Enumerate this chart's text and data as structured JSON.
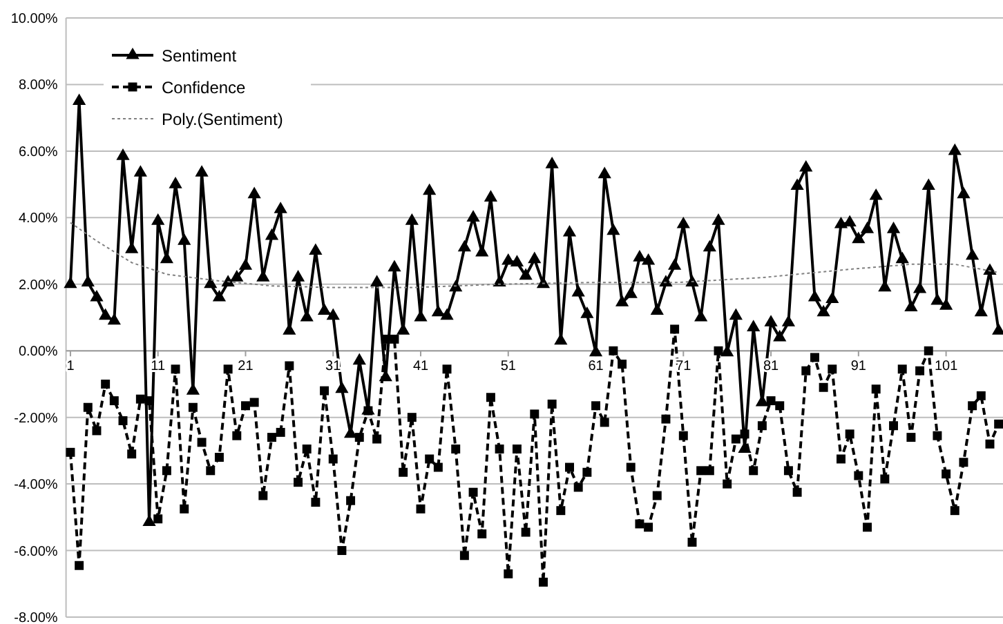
{
  "chart_data": {
    "type": "line",
    "x": [
      1,
      2,
      3,
      4,
      5,
      6,
      7,
      8,
      9,
      10,
      11,
      12,
      13,
      14,
      15,
      16,
      17,
      18,
      19,
      20,
      21,
      22,
      23,
      24,
      25,
      26,
      27,
      28,
      29,
      30,
      31,
      32,
      33,
      34,
      35,
      36,
      37,
      38,
      39,
      40,
      41,
      42,
      43,
      44,
      45,
      46,
      47,
      48,
      49,
      50,
      51,
      52,
      53,
      54,
      55,
      56,
      57,
      58,
      59,
      60,
      61,
      62,
      63,
      64,
      65,
      66,
      67,
      68,
      69,
      70,
      71,
      72,
      73,
      74,
      75,
      76,
      77,
      78,
      79,
      80,
      81,
      82,
      83,
      84,
      85,
      86,
      87,
      88,
      89,
      90,
      91,
      92,
      93,
      94,
      95,
      96,
      97,
      98,
      99,
      100,
      101,
      102,
      103,
      104,
      105,
      106,
      107
    ],
    "xlim": [
      0.5,
      107.5
    ],
    "xticks": [
      1,
      11,
      21,
      31,
      41,
      51,
      61,
      71,
      81,
      91,
      101
    ],
    "ylim": [
      -8,
      10
    ],
    "yticks": [
      {
        "value": -8,
        "label": "-8.00%"
      },
      {
        "value": -6,
        "label": "-6.00%"
      },
      {
        "value": -4,
        "label": "-4.00%"
      },
      {
        "value": -2,
        "label": "-2.00%"
      },
      {
        "value": 0,
        "label": "0.00%"
      },
      {
        "value": 2,
        "label": "2.00%"
      },
      {
        "value": 4,
        "label": "4.00%"
      },
      {
        "value": 6,
        "label": "6.00%"
      },
      {
        "value": 8,
        "label": "8.00%"
      },
      {
        "value": 10,
        "label": "10.00%"
      }
    ],
    "grid": "y",
    "legend": "top left",
    "series": [
      {
        "name": "Sentiment",
        "color": "#000000",
        "marker": "triangle",
        "line_style": "solid",
        "values": [
          2.0,
          7.5,
          2.05,
          1.6,
          1.05,
          0.9,
          5.85,
          3.05,
          5.35,
          -5.15,
          3.9,
          2.75,
          5.0,
          3.3,
          -1.2,
          5.35,
          2.0,
          1.6,
          2.05,
          2.2,
          2.55,
          4.7,
          2.2,
          3.45,
          4.25,
          0.6,
          2.2,
          1.0,
          3.0,
          1.2,
          1.05,
          -1.15,
          -2.5,
          -0.3,
          -1.8,
          2.05,
          -0.8,
          2.5,
          0.6,
          3.9,
          1.0,
          4.8,
          1.15,
          1.05,
          1.9,
          3.1,
          4.0,
          2.95,
          4.6,
          2.05,
          2.7,
          2.65,
          2.25,
          2.75,
          2.0,
          5.6,
          0.3,
          3.55,
          1.75,
          1.1,
          -0.05,
          5.3,
          3.6,
          1.45,
          1.7,
          2.8,
          2.7,
          1.2,
          2.05,
          2.55,
          3.8,
          2.05,
          1.0,
          3.1,
          3.9,
          -0.05,
          1.05,
          -2.95,
          0.7,
          -1.55,
          0.85,
          0.4,
          0.85,
          4.95,
          5.5,
          1.6,
          1.15,
          1.55,
          3.8,
          3.85,
          3.35,
          3.65,
          4.65,
          1.9,
          3.65,
          2.75,
          1.3,
          1.85,
          4.95,
          1.5,
          1.35,
          6.0,
          4.7,
          2.85,
          1.15,
          2.4,
          0.6
        ]
      },
      {
        "name": "Confidence",
        "color": "#000000",
        "marker": "square",
        "line_style": "dashed",
        "values": [
          -3.05,
          -6.45,
          -1.7,
          -2.4,
          -1.0,
          -1.5,
          -2.1,
          -3.1,
          -1.45,
          -1.5,
          -5.05,
          -3.6,
          -0.55,
          -4.75,
          -1.7,
          -2.75,
          -3.6,
          -3.2,
          -0.55,
          -2.55,
          -1.65,
          -1.55,
          -4.35,
          -2.6,
          -2.45,
          -0.45,
          -3.95,
          -2.95,
          -4.55,
          -1.2,
          -3.25,
          -6.0,
          -4.5,
          -2.6,
          -1.8,
          -2.65,
          0.35,
          0.35,
          -3.65,
          -2.0,
          -4.75,
          -3.25,
          -3.5,
          -0.55,
          -2.95,
          -6.15,
          -4.25,
          -5.5,
          -1.4,
          -2.95,
          -6.7,
          -2.95,
          -5.45,
          -1.9,
          -6.95,
          -1.6,
          -4.8,
          -3.5,
          -4.1,
          -3.65,
          -1.65,
          -2.15,
          0.0,
          -0.4,
          -3.5,
          -5.2,
          -5.3,
          -4.35,
          -2.05,
          0.65,
          -2.55,
          -5.75,
          -3.6,
          -3.6,
          0.0,
          -4.0,
          -2.65,
          -2.5,
          -3.6,
          -2.25,
          -1.5,
          -1.65,
          -3.6,
          -4.25,
          -0.6,
          -0.2,
          -1.1,
          -0.55,
          -3.25,
          -2.5,
          -3.75,
          -5.3,
          -1.15,
          -3.85,
          -2.25,
          -0.55,
          -2.6,
          -0.6,
          0.0,
          -2.55,
          -3.7,
          -4.8,
          -3.35,
          -1.65,
          -1.35,
          -2.8,
          -2.2
        ]
      },
      {
        "name": "Poly.(Sentiment)",
        "color": "#808080",
        "marker": "none",
        "line_style": "dotted",
        "x": [
          1,
          4,
          8,
          12,
          18,
          24,
          31,
          40,
          50,
          60,
          70,
          80,
          90,
          97,
          102,
          107
        ],
        "values": [
          3.85,
          3.3,
          2.65,
          2.3,
          2.1,
          1.95,
          1.9,
          1.9,
          2.0,
          2.05,
          2.05,
          2.2,
          2.45,
          2.6,
          2.6,
          2.35
        ]
      }
    ]
  }
}
